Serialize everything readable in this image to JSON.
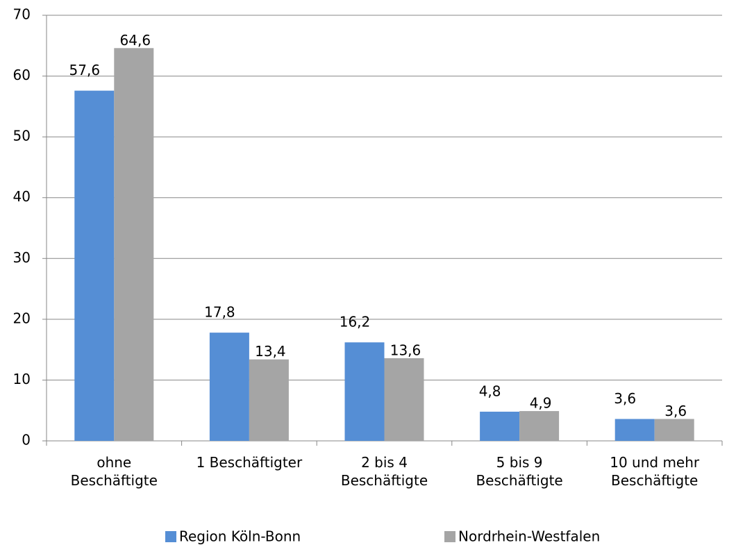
{
  "chart_data": {
    "type": "bar",
    "categories": [
      "ohne\nBeschäftigte",
      "1 Beschäftigter",
      "2 bis 4\nBeschäftigte",
      "5 bis 9\nBeschäftigte",
      "10 und mehr\nBeschäftigte"
    ],
    "series": [
      {
        "name": "Region Köln-Bonn",
        "color": "#558ed5",
        "values": [
          57.6,
          17.8,
          16.2,
          4.8,
          3.6
        ],
        "value_labels": [
          "57,6",
          "17,8",
          "16,2",
          "4,8",
          "3,6"
        ]
      },
      {
        "name": "Nordrhein-Westfalen",
        "color": "#a5a5a5",
        "values": [
          64.6,
          13.4,
          13.6,
          4.9,
          3.6
        ],
        "value_labels": [
          "64,6",
          "13,4",
          "13,6",
          "4,9",
          "3,6"
        ]
      }
    ],
    "ylim": [
      0,
      70
    ],
    "yticks": [
      0,
      10,
      20,
      30,
      40,
      50,
      60,
      70
    ],
    "grid": true,
    "legend": "bottom"
  }
}
